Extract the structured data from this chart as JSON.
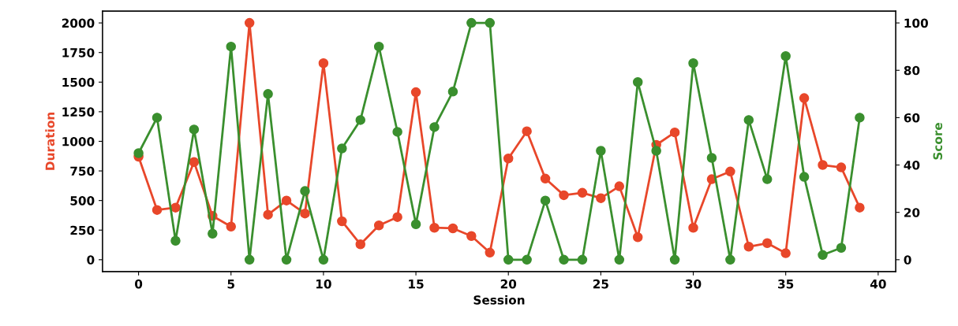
{
  "chart_data": {
    "type": "line",
    "xlabel": "Session",
    "ylabel": "Duration",
    "y2label": "Score",
    "x": [
      0,
      1,
      2,
      3,
      4,
      5,
      6,
      7,
      8,
      9,
      10,
      11,
      12,
      13,
      14,
      15,
      16,
      17,
      18,
      19,
      20,
      21,
      22,
      23,
      24,
      25,
      26,
      27,
      28,
      29,
      30,
      31,
      32,
      33,
      34,
      35,
      36,
      37,
      38,
      39
    ],
    "series": [
      {
        "color": "#e8472a",
        "values": [
          870,
          420,
          440,
          825,
          370,
          280,
          2000,
          380,
          500,
          390,
          1660,
          325,
          130,
          290,
          360,
          1415,
          270,
          265,
          200,
          60,
          855,
          1085,
          685,
          545,
          565,
          520,
          620,
          190,
          970,
          1075,
          270,
          680,
          745,
          110,
          140,
          55,
          1365,
          800,
          780,
          440
        ]
      },
      {
        "color": "#3a8f2e",
        "axis": "y2",
        "values": [
          45,
          60,
          8,
          55,
          11,
          90,
          0,
          70,
          0,
          29,
          0,
          47,
          59,
          90,
          54,
          15,
          56,
          71,
          100,
          100,
          0,
          0,
          25,
          0,
          0,
          46,
          0,
          75,
          46,
          0,
          83,
          43,
          0,
          59,
          34,
          86,
          35,
          2,
          5,
          60
        ]
      }
    ],
    "xlim": [
      -1.95,
      40.95
    ],
    "xticks": [
      0,
      5,
      10,
      15,
      20,
      25,
      30,
      35,
      40
    ],
    "ylim": [
      -100,
      2100
    ],
    "yticks": [
      0,
      250,
      500,
      750,
      1000,
      1250,
      1500,
      1750,
      2000
    ],
    "y2lim": [
      -5,
      105
    ],
    "y2ticks": [
      0,
      20,
      40,
      60,
      80,
      100
    ],
    "marker": "circle",
    "line_style": "solid",
    "grid": false
  }
}
